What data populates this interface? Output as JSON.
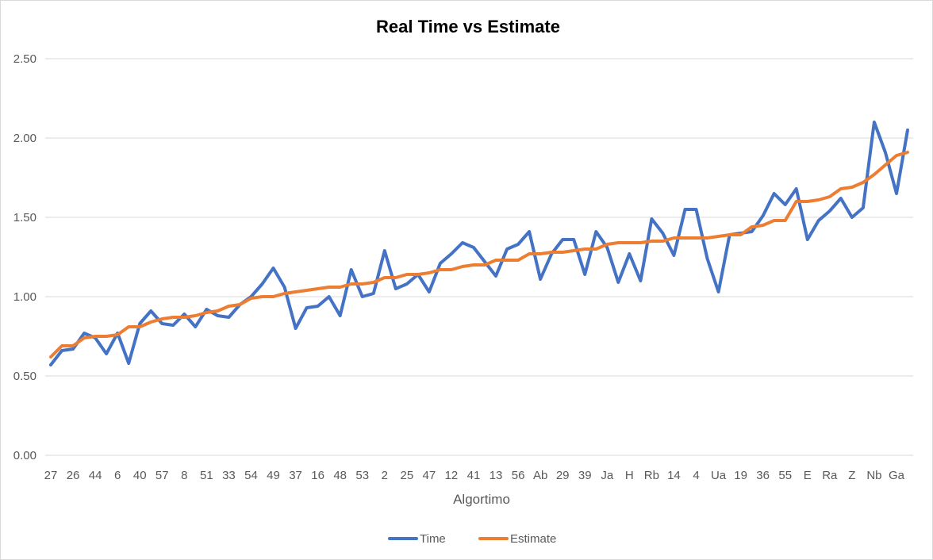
{
  "chart_data": {
    "type": "line",
    "title": "Real Time vs Estimate",
    "xlabel": "Algortimo",
    "ylabel": "",
    "ylim": [
      0,
      2.5
    ],
    "y_ticks": [
      "0.00",
      "0.50",
      "1.00",
      "1.50",
      "2.00",
      "2.50"
    ],
    "grid": true,
    "legend_position": "bottom",
    "categories": [
      "27",
      "",
      "26",
      "",
      "44",
      "",
      "6",
      "",
      "40",
      "",
      "57",
      "",
      "8",
      "",
      "51",
      "",
      "33",
      "",
      "54",
      "",
      "49",
      "",
      "37",
      "",
      "16",
      "",
      "48",
      "",
      "53",
      "",
      "2",
      "",
      "25",
      "",
      "47",
      "",
      "12",
      "",
      "41",
      "",
      "13",
      "",
      "56",
      "",
      "Ab",
      "",
      "29",
      "",
      "39",
      "",
      "Ja",
      "",
      "H",
      "",
      "Rb",
      "",
      "14",
      "",
      "4",
      "",
      "Ua",
      "",
      "19",
      "",
      "36",
      "",
      "55",
      "",
      "E",
      "",
      "Ra",
      "",
      "Z",
      "",
      "Nb",
      "",
      "Ga",
      ""
    ],
    "series": [
      {
        "name": "Time",
        "color": "#4472C4",
        "values": [
          0.57,
          0.66,
          0.67,
          0.77,
          0.74,
          0.64,
          0.77,
          0.58,
          0.83,
          0.91,
          0.83,
          0.82,
          0.89,
          0.81,
          0.92,
          0.88,
          0.87,
          0.95,
          1.0,
          1.08,
          1.18,
          1.06,
          0.8,
          0.93,
          0.94,
          1.0,
          0.88,
          1.17,
          1.0,
          1.02,
          1.29,
          1.05,
          1.08,
          1.14,
          1.03,
          1.21,
          1.27,
          1.34,
          1.31,
          1.22,
          1.13,
          1.3,
          1.33,
          1.41,
          1.11,
          1.27,
          1.36,
          1.36,
          1.14,
          1.41,
          1.31,
          1.09,
          1.27,
          1.1,
          1.49,
          1.4,
          1.26,
          1.55,
          1.55,
          1.24,
          1.03,
          1.39,
          1.4,
          1.41,
          1.51,
          1.65,
          1.58,
          1.68,
          1.36,
          1.48,
          1.54,
          1.62,
          1.5,
          1.56,
          2.1,
          1.91,
          1.65,
          2.05
        ]
      },
      {
        "name": "Estimate",
        "color": "#ED7D31",
        "values": [
          0.62,
          0.69,
          0.69,
          0.74,
          0.75,
          0.75,
          0.76,
          0.81,
          0.81,
          0.84,
          0.86,
          0.87,
          0.87,
          0.88,
          0.9,
          0.91,
          0.94,
          0.95,
          0.99,
          1.0,
          1.0,
          1.02,
          1.03,
          1.04,
          1.05,
          1.06,
          1.06,
          1.08,
          1.08,
          1.09,
          1.12,
          1.12,
          1.14,
          1.14,
          1.15,
          1.17,
          1.17,
          1.19,
          1.2,
          1.2,
          1.23,
          1.23,
          1.23,
          1.27,
          1.27,
          1.28,
          1.28,
          1.29,
          1.3,
          1.3,
          1.33,
          1.34,
          1.34,
          1.34,
          1.35,
          1.35,
          1.37,
          1.37,
          1.37,
          1.37,
          1.38,
          1.39,
          1.39,
          1.44,
          1.45,
          1.48,
          1.48,
          1.6,
          1.6,
          1.61,
          1.63,
          1.68,
          1.69,
          1.72,
          1.77,
          1.83,
          1.89,
          1.91
        ]
      }
    ]
  }
}
